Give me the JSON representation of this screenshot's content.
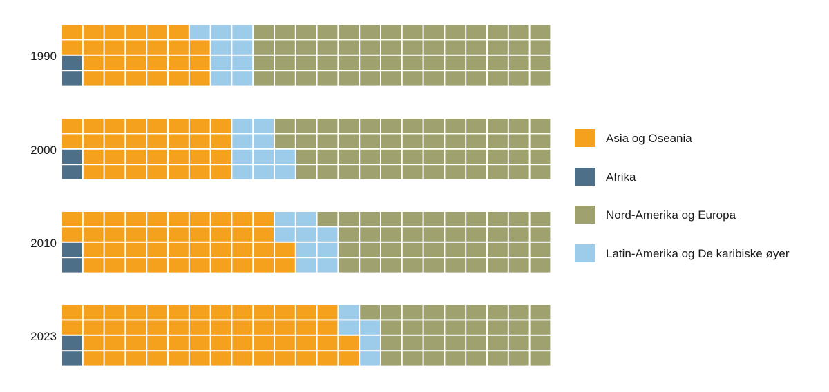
{
  "chart_data": {
    "type": "waffle",
    "title": "",
    "grid": {
      "rows": 4,
      "cols": 23,
      "total_cells": 92
    },
    "series": [
      {
        "key": "afrika",
        "name": "Afrika",
        "color": "#4d7088"
      },
      {
        "key": "asia",
        "name": "Asia og Oseania",
        "color": "#f5a11e"
      },
      {
        "key": "latam",
        "name": "Latin-Amerika og De karibiske øyer",
        "color": "#9dcbea"
      },
      {
        "key": "nordam",
        "name": "Nord-Amerika og Europa",
        "color": "#9fa26e"
      }
    ],
    "legend_order": [
      "asia",
      "afrika",
      "nordam",
      "latam"
    ],
    "legend_position": "right",
    "years": [
      {
        "year": "1990",
        "counts": {
          "afrika": 2,
          "asia": 25,
          "latam": 9,
          "nordam": 56
        }
      },
      {
        "year": "2000",
        "counts": {
          "afrika": 2,
          "asia": 30,
          "latam": 10,
          "nordam": 50
        }
      },
      {
        "year": "2010",
        "counts": {
          "afrika": 2,
          "asia": 40,
          "latam": 9,
          "nordam": 41
        }
      },
      {
        "year": "2023",
        "counts": {
          "afrika": 2,
          "asia": 52,
          "latam": 5,
          "nordam": 33
        }
      }
    ]
  }
}
